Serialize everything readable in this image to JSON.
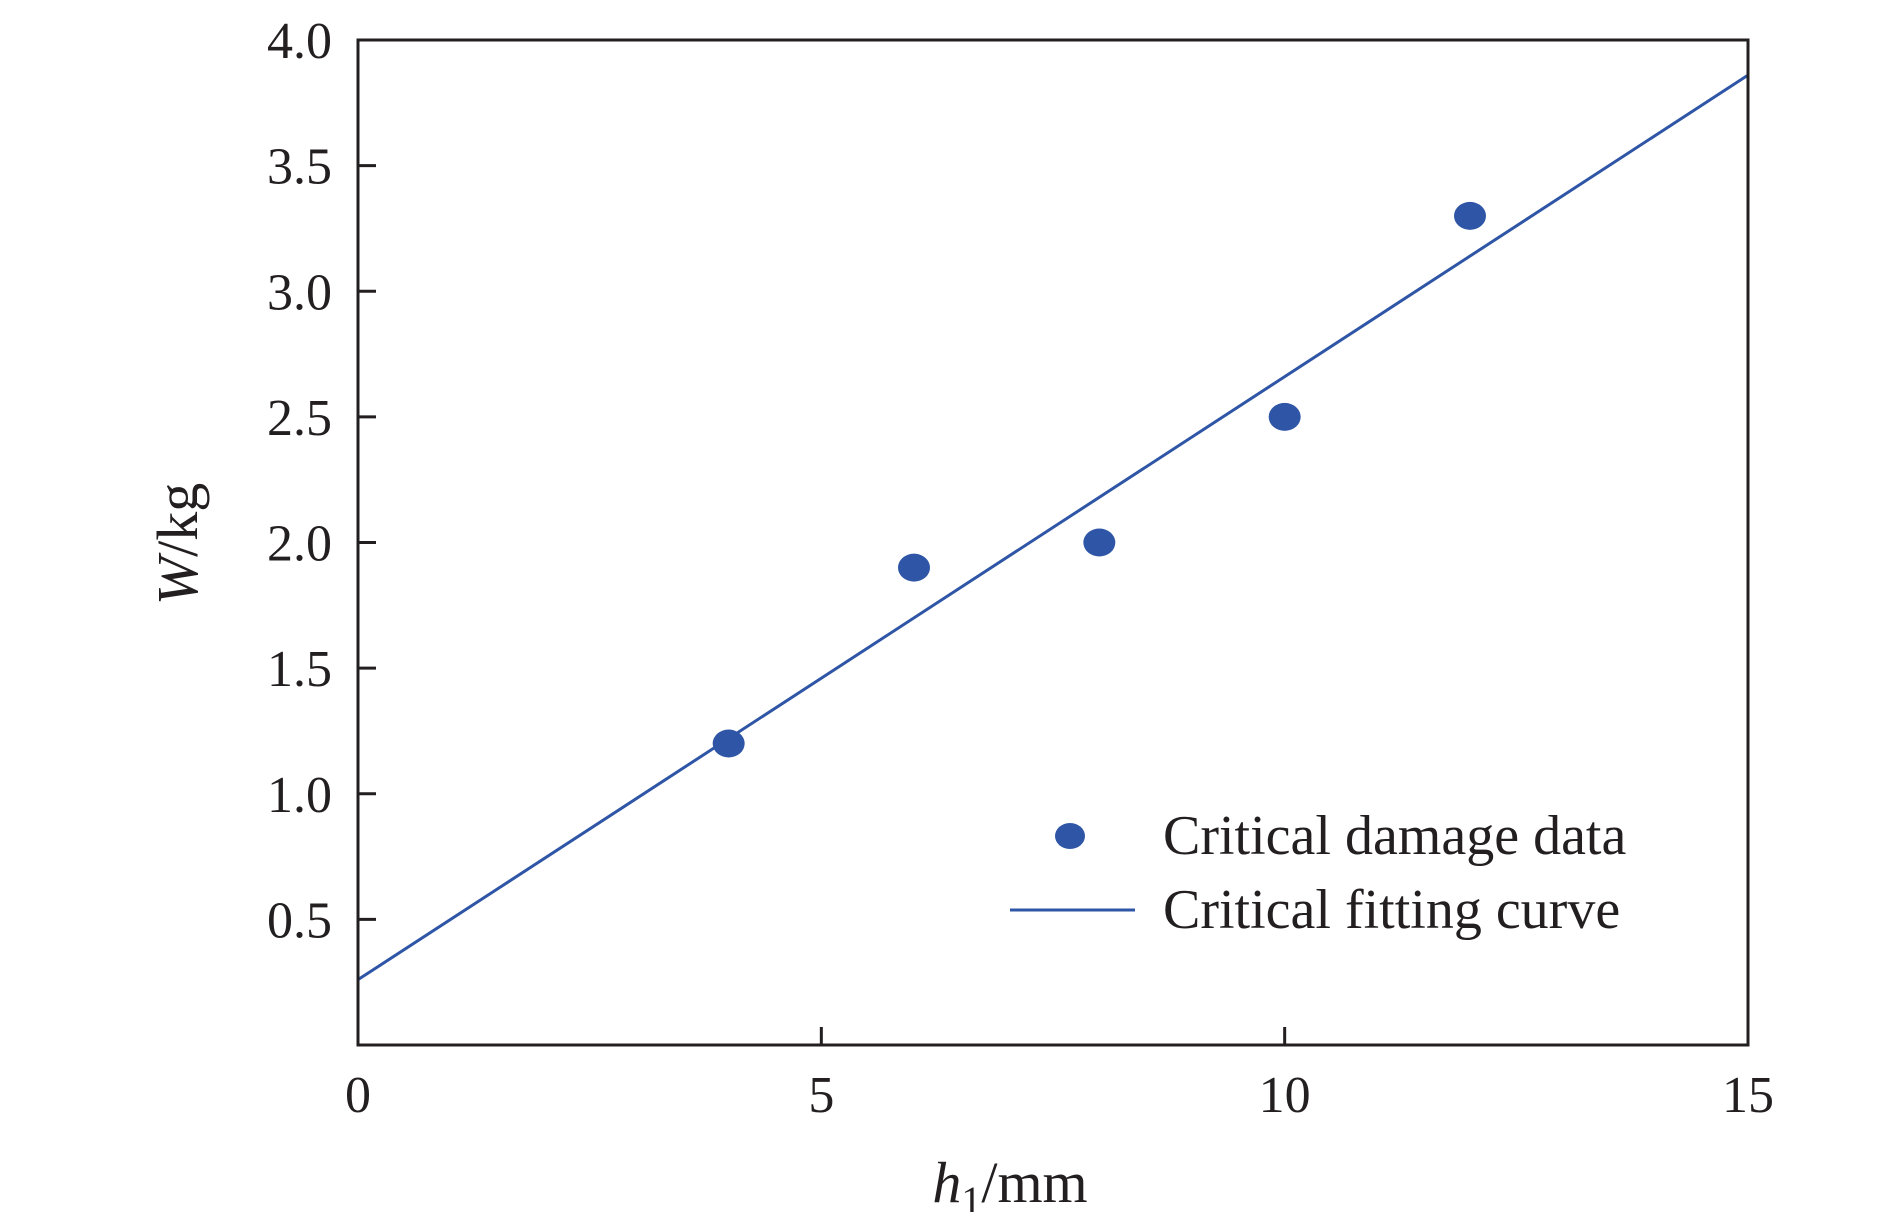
{
  "chart_data": {
    "type": "scatter",
    "xlabel": {
      "symbol": "h",
      "sub": "1",
      "unit": "/mm"
    },
    "ylabel": {
      "symbol": "W",
      "unit": "/kg"
    },
    "xlim": [
      0,
      15
    ],
    "ylim": [
      0,
      4.0
    ],
    "x_ticks": [
      0,
      5,
      10,
      15
    ],
    "x_tick_labels": [
      "0",
      "5",
      "10",
      "15"
    ],
    "y_ticks": [
      0.5,
      1.0,
      1.5,
      2.0,
      2.5,
      3.0,
      3.5,
      4.0
    ],
    "y_tick_labels": [
      "0.5",
      "1.0",
      "1.5",
      "2.0",
      "2.5",
      "3.0",
      "3.5",
      "4.0"
    ],
    "grid": false,
    "legend_position": "bottom-right",
    "series": [
      {
        "name": "Critical damage data",
        "kind": "scatter",
        "color": "#2f56a6",
        "x": [
          4,
          6,
          8,
          10,
          12
        ],
        "y": [
          1.2,
          1.9,
          2.0,
          2.5,
          3.3
        ]
      },
      {
        "name": "Critical fitting curve",
        "kind": "line",
        "color": "#2f56a6",
        "x": [
          0,
          15
        ],
        "y": [
          0.26,
          3.86
        ]
      }
    ]
  }
}
